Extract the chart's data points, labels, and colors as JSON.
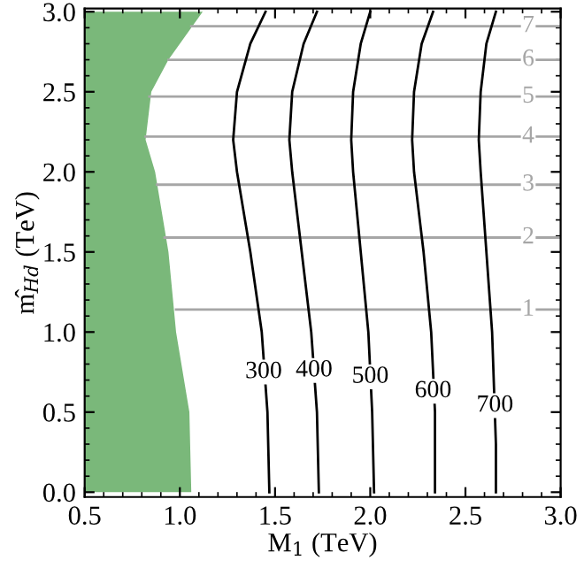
{
  "chart_data": {
    "type": "line",
    "xlabel": "M$_{1}$ (TeV)",
    "ylabel": "m̂$_{Hd}$ (TeV)",
    "xlim": [
      0.5,
      3.0
    ],
    "ylim": [
      -0.03,
      3.02
    ],
    "xticks": [
      0.5,
      {
        "value": 1,
        "label": "1.0"
      },
      1.5,
      {
        "value": 2,
        "label": "2.0"
      },
      2.5,
      {
        "value": 3,
        "label": "3.0"
      }
    ],
    "yticks": [
      {
        "value": 0,
        "label": "0.0"
      },
      0.5,
      {
        "value": 1,
        "label": "1.0"
      },
      1.5,
      {
        "value": 2,
        "label": "2.0"
      },
      2.5,
      {
        "value": 3,
        "label": "3.0"
      }
    ],
    "grid": false,
    "legend": false,
    "series": [
      {
        "type": "area",
        "color": "#7ab87a",
        "x": [
          0.5,
          1.06,
          1.05,
          0.98,
          0.94,
          0.87,
          0.82,
          0.85,
          0.94,
          1.12,
          0.5
        ],
        "values": [
          0.0,
          0.0,
          0.5,
          1.0,
          1.5,
          2.0,
          2.2,
          2.5,
          2.7,
          3.0,
          3.0
        ]
      },
      {
        "color": "#a6a6a6",
        "x": [
          0.98,
          3.0
        ],
        "values": [
          1.14,
          1.14
        ]
      },
      {
        "color": "#a6a6a6",
        "x": [
          0.92,
          3.0
        ],
        "values": [
          1.59,
          1.59
        ]
      },
      {
        "color": "#a6a6a6",
        "x": [
          0.88,
          3.0
        ],
        "values": [
          1.92,
          1.92
        ]
      },
      {
        "color": "#a6a6a6",
        "x": [
          0.82,
          3.0
        ],
        "values": [
          2.22,
          2.22
        ]
      },
      {
        "color": "#a6a6a6",
        "x": [
          0.84,
          3.0
        ],
        "values": [
          2.47,
          2.47
        ]
      },
      {
        "color": "#a6a6a6",
        "x": [
          0.94,
          3.0
        ],
        "values": [
          2.7,
          2.7
        ]
      },
      {
        "color": "#a6a6a6",
        "x": [
          1.06,
          3.0
        ],
        "values": [
          2.91,
          2.91
        ]
      },
      {
        "color": "#000000",
        "x": [
          1.47,
          1.46,
          1.43,
          1.37,
          1.3,
          1.28,
          1.3,
          1.37,
          1.45
        ],
        "values": [
          0.0,
          0.5,
          1.0,
          1.5,
          2.0,
          2.2,
          2.5,
          2.8,
          3.0
        ]
      },
      {
        "color": "#000000",
        "x": [
          1.73,
          1.72,
          1.69,
          1.64,
          1.59,
          1.575,
          1.59,
          1.65,
          1.72
        ],
        "values": [
          0.0,
          0.5,
          1.0,
          1.5,
          2.0,
          2.2,
          2.5,
          2.8,
          3.0
        ]
      },
      {
        "color": "#000000",
        "x": [
          2.02,
          2.01,
          1.99,
          1.95,
          1.91,
          1.9,
          1.91,
          1.95,
          2.0
        ],
        "values": [
          0.0,
          0.5,
          1.0,
          1.5,
          2.0,
          2.2,
          2.5,
          2.8,
          3.0
        ]
      },
      {
        "color": "#000000",
        "x": [
          2.34,
          2.34,
          2.32,
          2.28,
          2.23,
          2.22,
          2.23,
          2.27,
          2.33
        ],
        "values": [
          0.0,
          0.5,
          1.0,
          1.5,
          2.0,
          2.2,
          2.5,
          2.8,
          3.0
        ]
      },
      {
        "color": "#000000",
        "x": [
          2.66,
          2.66,
          2.64,
          2.61,
          2.58,
          2.57,
          2.58,
          2.61,
          2.66
        ],
        "values": [
          0.0,
          0.3,
          1.0,
          1.5,
          2.0,
          2.2,
          2.5,
          2.8,
          3.0
        ]
      }
    ],
    "annotations": [
      {
        "text": "300",
        "x": 1.44,
        "y": 0.75
      },
      {
        "text": "400",
        "x": 1.705,
        "y": 0.76
      },
      {
        "text": "500",
        "x": 2.0,
        "y": 0.72
      },
      {
        "text": "600",
        "x": 2.33,
        "y": 0.63
      },
      {
        "text": "700",
        "x": 2.655,
        "y": 0.54
      },
      {
        "text": "1",
        "x": 2.83,
        "y": 1.14
      },
      {
        "text": "2",
        "x": 2.83,
        "y": 1.59
      },
      {
        "text": "3",
        "x": 2.83,
        "y": 1.92
      },
      {
        "text": "4",
        "x": 2.83,
        "y": 2.22
      },
      {
        "text": "5",
        "x": 2.83,
        "y": 2.47
      },
      {
        "text": "6",
        "x": 2.83,
        "y": 2.7
      },
      {
        "text": "7",
        "x": 2.83,
        "y": 2.91
      }
    ]
  }
}
